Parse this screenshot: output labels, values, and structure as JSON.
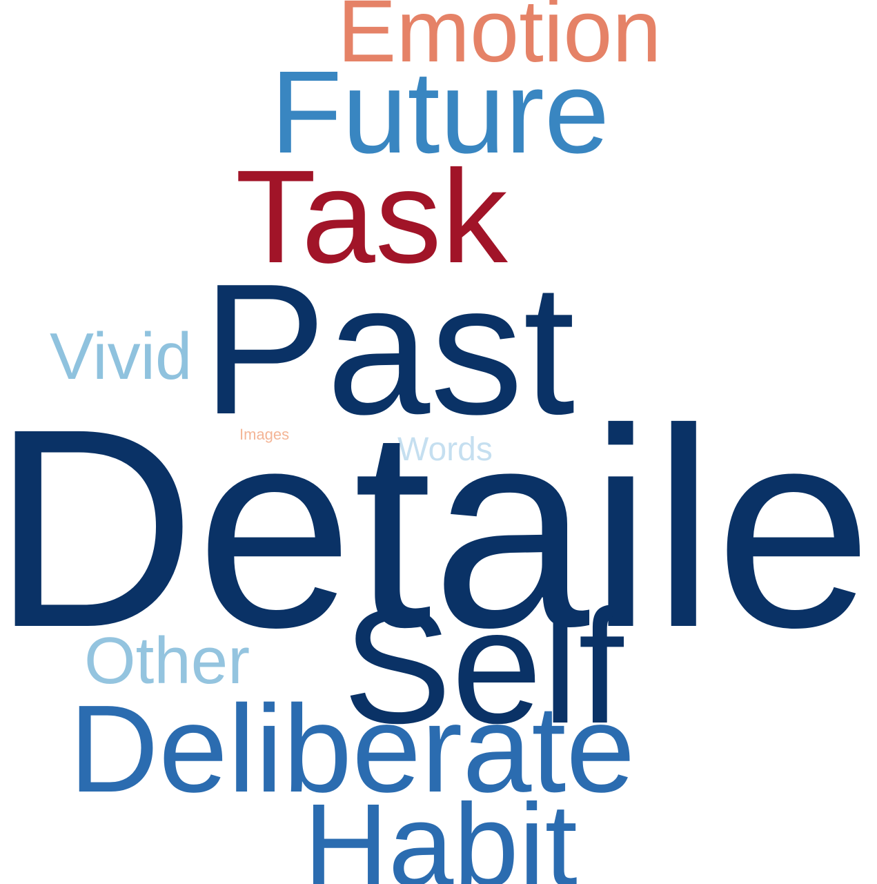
{
  "word_cloud": {
    "words": [
      {
        "key": "emotion",
        "text": "Emotion",
        "color": "#e58267"
      },
      {
        "key": "future",
        "text": "Future",
        "color": "#3986c1"
      },
      {
        "key": "task",
        "text": "Task",
        "color": "#a11428"
      },
      {
        "key": "past",
        "text": "Past",
        "color": "#0a3266"
      },
      {
        "key": "vivid",
        "text": "Vivid",
        "color": "#8fc2de"
      },
      {
        "key": "images",
        "text": "Images",
        "color": "#f4b596"
      },
      {
        "key": "words",
        "text": "Words",
        "color": "#c5dff0"
      },
      {
        "key": "detailed",
        "text": "Detailed",
        "color": "#0a3266"
      },
      {
        "key": "self",
        "text": "Self",
        "color": "#0a3266"
      },
      {
        "key": "other",
        "text": "Other",
        "color": "#94c4df"
      },
      {
        "key": "deliberate",
        "text": "Deliberate",
        "color": "#2b6cb0"
      },
      {
        "key": "habit",
        "text": "Habit",
        "color": "#2b6cb0"
      }
    ]
  }
}
